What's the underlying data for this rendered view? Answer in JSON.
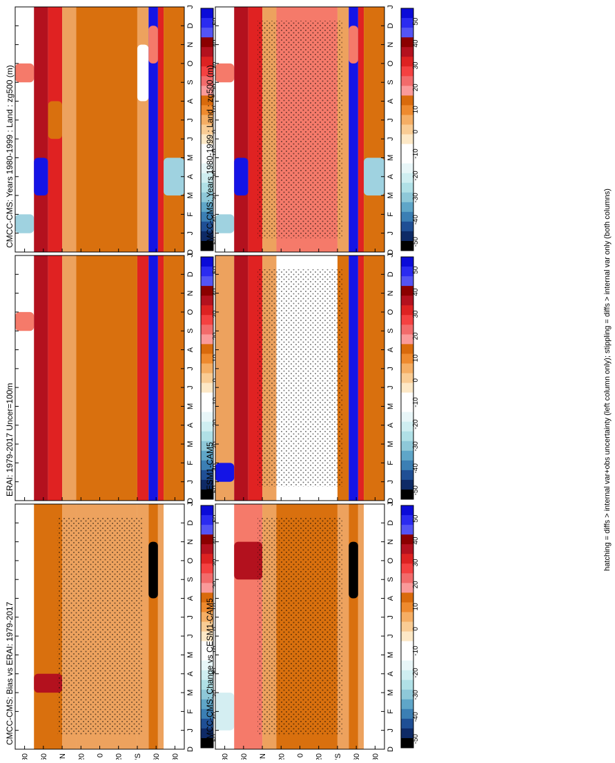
{
  "footnote": "hatching = diffs > internal var+obs uncertainty (left column only); stippling = diffs > internal var only (both columns)",
  "colorbar": {
    "labels": [
      "50",
      "40",
      "30",
      "20",
      "10",
      "0",
      "-10",
      "-20",
      "-30",
      "-40",
      "-50"
    ],
    "colors": [
      "#0b0bd8",
      "#2b2bf0",
      "#5454f4",
      "#8b0000",
      "#b3111e",
      "#dd2222",
      "#f44141",
      "#f26b6b",
      "#fa9a9a",
      "#d96a0c",
      "#ee8a2e",
      "#f5ae64",
      "#f9cc94",
      "#fde8c6",
      "#ffffff",
      "#ffffff",
      "#e8f6f8",
      "#cfeef1",
      "#b0e0e6",
      "#8ec8d8",
      "#5fa6c8",
      "#3b7fb4",
      "#1f4f95",
      "#0e2a66",
      "#000000"
    ]
  },
  "palette": {
    "blue": "#1414e6",
    "darkred": "#b3111e",
    "red": "#e02222",
    "salmon": "#f57a6a",
    "darkorange": "#d9700e",
    "orange": "#eda25e",
    "lightorange": "#f8c894",
    "cream": "#fde6c2",
    "white": "#ffffff",
    "lightcyan": "#d4eef2",
    "cyan": "#9fd2e0",
    "midblue": "#4a8fc0",
    "black": "#000000"
  },
  "chart_data": [
    {
      "type": "heatmap",
      "panel": "top-left",
      "title": "CMCC-CMS: Years 1980-1999 : Land : zg500 (m)",
      "month_ticks": [
        "D",
        "J",
        "F",
        "M",
        "A",
        "M",
        "J",
        "J",
        "A",
        "S",
        "O",
        "N",
        "D",
        "J"
      ],
      "lat_ticks": [
        "80",
        "60",
        "°N",
        "20",
        "0",
        "20",
        "°S",
        "60",
        "80"
      ],
      "xlim": [
        "Dec",
        "Jan"
      ],
      "ylim": [
        -90,
        90
      ],
      "bands": [
        {
          "lat": [
            70,
            90
          ],
          "value": 0,
          "patches": [
            {
              "months": [
                1,
                2
              ],
              "value": -15
            },
            {
              "months": [
                9,
                10
              ],
              "value": 15
            }
          ]
        },
        {
          "lat": [
            55,
            70
          ],
          "value": 25,
          "patches": [
            {
              "months": [
                3,
                5
              ],
              "value": 50
            }
          ]
        },
        {
          "lat": [
            40,
            55
          ],
          "value": 20,
          "patches": [
            {
              "months": [
                6,
                8
              ],
              "value": 10
            }
          ]
        },
        {
          "lat": [
            25,
            40
          ],
          "value": 5
        },
        {
          "lat": [
            -40,
            25
          ],
          "value": 10
        },
        {
          "lat": [
            -52,
            -40
          ],
          "value": 5,
          "patches": [
            {
              "months": [
                8,
                11
              ],
              "value": 0
            }
          ]
        },
        {
          "lat": [
            -62,
            -52
          ],
          "value": 50,
          "patches": [
            {
              "months": [
                10,
                12
              ],
              "value": 15
            }
          ]
        },
        {
          "lat": [
            -68,
            -62
          ],
          "value": 20
        },
        {
          "lat": [
            -90,
            -68
          ],
          "value": 10,
          "patches": [
            {
              "months": [
                3,
                5
              ],
              "value": -20
            }
          ]
        }
      ]
    },
    {
      "type": "heatmap",
      "panel": "top-right",
      "title": "CMCC-CMS: Years 1980-1999 : Land : zg500 (m)",
      "month_ticks": [
        "D",
        "J",
        "F",
        "M",
        "A",
        "M",
        "J",
        "J",
        "A",
        "S",
        "O",
        "N",
        "D",
        "J"
      ],
      "lat_ticks": [
        "80",
        "60",
        "°N",
        "20",
        "0",
        "20",
        "°S",
        "60",
        "80"
      ],
      "xlim": [
        "Dec",
        "Jan"
      ],
      "ylim": [
        -90,
        90
      ],
      "bands": [
        {
          "lat": [
            70,
            90
          ],
          "value": 0,
          "patches": [
            {
              "months": [
                1,
                2
              ],
              "value": -15
            },
            {
              "months": [
                9,
                10
              ],
              "value": 15
            }
          ]
        },
        {
          "lat": [
            55,
            70
          ],
          "value": 25,
          "patches": [
            {
              "months": [
                3,
                5
              ],
              "value": 50
            }
          ]
        },
        {
          "lat": [
            40,
            55
          ],
          "value": 20
        },
        {
          "lat": [
            25,
            40
          ],
          "value": 5
        },
        {
          "lat": [
            -40,
            25
          ],
          "value": 15
        },
        {
          "lat": [
            -52,
            -40
          ],
          "value": 5
        },
        {
          "lat": [
            -62,
            -52
          ],
          "value": 50,
          "patches": [
            {
              "months": [
                10,
                12
              ],
              "value": 15
            }
          ]
        },
        {
          "lat": [
            -68,
            -62
          ],
          "value": 20
        },
        {
          "lat": [
            -90,
            -68
          ],
          "value": 10,
          "patches": [
            {
              "months": [
                3,
                5
              ],
              "value": -20
            }
          ]
        }
      ]
    },
    {
      "type": "heatmap",
      "panel": "middle-left",
      "title": "ERAI: 1979-2017 Uncer=100m",
      "month_ticks": [
        "D",
        "J",
        "F",
        "M",
        "A",
        "M",
        "J",
        "J",
        "A",
        "S",
        "O",
        "N",
        "D",
        "J"
      ],
      "lat_ticks": [
        "80",
        "60",
        "°N",
        "20",
        "0",
        "20",
        "°S",
        "60",
        "80"
      ],
      "xlim": [
        "Dec",
        "Jan"
      ],
      "ylim": [
        -90,
        90
      ],
      "bands": [
        {
          "lat": [
            70,
            90
          ],
          "value": 0,
          "patches": [
            {
              "months": [
                9,
                10
              ],
              "value": 15
            }
          ]
        },
        {
          "lat": [
            55,
            70
          ],
          "value": 25
        },
        {
          "lat": [
            40,
            55
          ],
          "value": 20
        },
        {
          "lat": [
            25,
            40
          ],
          "value": 5
        },
        {
          "lat": [
            -40,
            25
          ],
          "value": 10
        },
        {
          "lat": [
            -52,
            -40
          ],
          "value": 20
        },
        {
          "lat": [
            -62,
            -52
          ],
          "value": 50
        },
        {
          "lat": [
            -68,
            -62
          ],
          "value": 20
        },
        {
          "lat": [
            -90,
            -68
          ],
          "value": 10
        }
      ]
    },
    {
      "type": "heatmap",
      "panel": "middle-right",
      "title": "CESM1-CAM5",
      "month_ticks": [
        "D",
        "J",
        "F",
        "M",
        "A",
        "M",
        "J",
        "J",
        "A",
        "S",
        "O",
        "N",
        "D",
        "J"
      ],
      "lat_ticks": [
        "80",
        "60",
        "°N",
        "20",
        "0",
        "20",
        "°S",
        "60",
        "80"
      ],
      "xlim": [
        "Dec",
        "Jan"
      ],
      "ylim": [
        -90,
        90
      ],
      "bands": [
        {
          "lat": [
            70,
            90
          ],
          "value": 5,
          "patches": [
            {
              "months": [
                1,
                2
              ],
              "value": 50
            }
          ]
        },
        {
          "lat": [
            55,
            70
          ],
          "value": 25
        },
        {
          "lat": [
            40,
            55
          ],
          "value": 20
        },
        {
          "lat": [
            25,
            40
          ],
          "value": 5
        },
        {
          "lat": [
            -40,
            25
          ],
          "value": 0
        },
        {
          "lat": [
            -52,
            -40
          ],
          "value": 10
        },
        {
          "lat": [
            -62,
            -52
          ],
          "value": 50
        },
        {
          "lat": [
            -68,
            -62
          ],
          "value": 20
        },
        {
          "lat": [
            -90,
            -68
          ],
          "value": 10
        }
      ]
    },
    {
      "type": "heatmap",
      "panel": "bottom-left",
      "title": "CMCC-CMS: Bias vs ERAI: 1979-2017",
      "month_ticks": [
        "D",
        "J",
        "F",
        "M",
        "A",
        "M",
        "J",
        "J",
        "A",
        "S",
        "O",
        "N",
        "D",
        "J"
      ],
      "lat_ticks": [
        "80",
        "60",
        "°N",
        "20",
        "0",
        "20",
        "°S",
        "60",
        "80"
      ],
      "xlim": [
        "Dec",
        "Jan"
      ],
      "ylim": [
        -90,
        90
      ],
      "bands": [
        {
          "lat": [
            70,
            90
          ],
          "value": 0
        },
        {
          "lat": [
            40,
            70
          ],
          "value": 10,
          "patches": [
            {
              "months": [
                3,
                4
              ],
              "value": 25
            }
          ]
        },
        {
          "lat": [
            25,
            40
          ],
          "value": 5
        },
        {
          "lat": [
            -40,
            25
          ],
          "value": 5
        },
        {
          "lat": [
            -52,
            -40
          ],
          "value": 5
        },
        {
          "lat": [
            -62,
            -52
          ],
          "value": 10,
          "patches": [
            {
              "months": [
                8,
                11
              ],
              "value": -50
            }
          ]
        },
        {
          "lat": [
            -68,
            -62
          ],
          "value": 5
        },
        {
          "lat": [
            -90,
            -68
          ],
          "value": 0
        }
      ]
    },
    {
      "type": "heatmap",
      "panel": "bottom-right",
      "title": "CMCC-CMS: Change vs CESM1-CAM5",
      "month_ticks": [
        "D",
        "J",
        "F",
        "M",
        "A",
        "M",
        "J",
        "J",
        "A",
        "S",
        "O",
        "N",
        "D",
        "J"
      ],
      "lat_ticks": [
        "80",
        "60",
        "°N",
        "20",
        "0",
        "20",
        "°S",
        "60",
        "80"
      ],
      "xlim": [
        "Dec",
        "Jan"
      ],
      "ylim": [
        -90,
        90
      ],
      "bands": [
        {
          "lat": [
            70,
            90
          ],
          "value": 0,
          "patches": [
            {
              "months": [
                1,
                3
              ],
              "value": -10
            }
          ]
        },
        {
          "lat": [
            40,
            70
          ],
          "value": 15,
          "patches": [
            {
              "months": [
                9,
                11
              ],
              "value": 25
            }
          ]
        },
        {
          "lat": [
            25,
            40
          ],
          "value": 5
        },
        {
          "lat": [
            -40,
            25
          ],
          "value": 10
        },
        {
          "lat": [
            -52,
            -40
          ],
          "value": 5
        },
        {
          "lat": [
            -62,
            -52
          ],
          "value": 10,
          "patches": [
            {
              "months": [
                8,
                11
              ],
              "value": -50
            }
          ]
        },
        {
          "lat": [
            -68,
            -62
          ],
          "value": 5
        },
        {
          "lat": [
            -90,
            -68
          ],
          "value": 0
        }
      ]
    }
  ]
}
